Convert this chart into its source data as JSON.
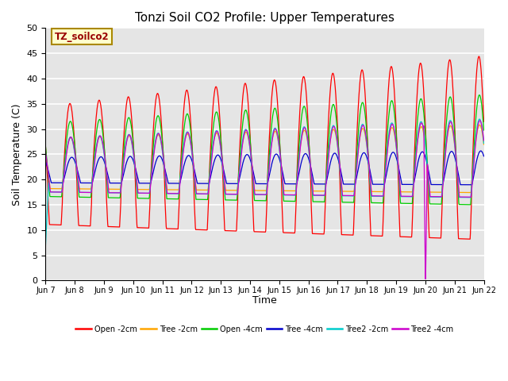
{
  "title": "Tonzi Soil CO2 Profile: Upper Temperatures",
  "ylabel": "Soil Temperature (C)",
  "xlabel": "Time",
  "annotation": "TZ_soilco2",
  "ylim": [
    0,
    50
  ],
  "legend": [
    {
      "label": "Open -2cm",
      "color": "#ff0000"
    },
    {
      "label": "Tree -2cm",
      "color": "#ffa500"
    },
    {
      "label": "Open -4cm",
      "color": "#00cc00"
    },
    {
      "label": "Tree -4cm",
      "color": "#0000cc"
    },
    {
      "label": "Tree2 -2cm",
      "color": "#00cccc"
    },
    {
      "label": "Tree2 -4cm",
      "color": "#cc00cc"
    }
  ],
  "x_tick_labels": [
    "Jun 7",
    "Jun 8",
    "Jun 9",
    "Jun 10",
    "Jun 11",
    "Jun 12",
    "Jun 13",
    "Jun 14",
    "Jun 15",
    "Jun 16",
    "Jun 17",
    "Jun 18",
    "Jun 19",
    "Jun 20",
    "Jun 21",
    "Jun 22"
  ],
  "bg_color": "#e5e5e5",
  "fig_bg": "#ffffff",
  "grid_color": "#ffffff"
}
